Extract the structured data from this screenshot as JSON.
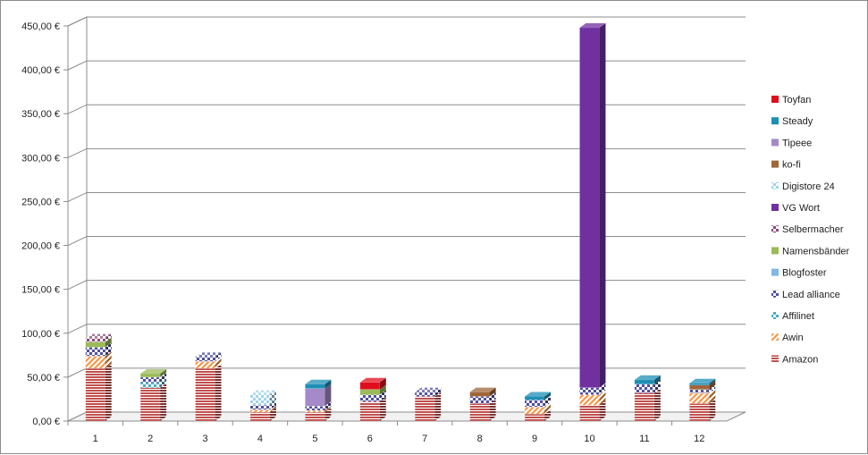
{
  "chart_data": {
    "type": "bar",
    "stacked": true,
    "three_d": true,
    "categories": [
      "1",
      "2",
      "3",
      "4",
      "5",
      "6",
      "7",
      "8",
      "9",
      "10",
      "11",
      "12"
    ],
    "ylim": [
      0,
      450
    ],
    "y_ticks": [
      "0,00 €",
      "50,00 €",
      "100,00 €",
      "150,00 €",
      "200,00 €",
      "250,00 €",
      "300,00 €",
      "350,00 €",
      "400,00 €",
      "450,00 €"
    ],
    "grid": true,
    "legend_position": "right",
    "series": [
      {
        "name": "Amazon",
        "color": "#c0504d",
        "pattern": "horizontal-lines",
        "values": [
          60,
          38,
          60,
          10,
          10,
          22,
          28,
          20,
          8,
          18,
          32,
          20
        ]
      },
      {
        "name": "Awin",
        "color": "#f79646",
        "pattern": "diagonal-lines",
        "values": [
          14,
          0,
          8,
          3,
          2,
          0,
          0,
          0,
          8,
          12,
          0,
          12
        ]
      },
      {
        "name": "Affilinet",
        "color": "#4bacc6",
        "pattern": "checker",
        "values": [
          0,
          6,
          0,
          0,
          0,
          0,
          0,
          0,
          0,
          0,
          0,
          0
        ]
      },
      {
        "name": "Lead alliance",
        "color": "#4f4f9f",
        "pattern": "checker",
        "values": [
          10,
          6,
          5,
          5,
          5,
          8,
          5,
          8,
          8,
          8,
          10,
          4
        ]
      },
      {
        "name": "Blogfoster",
        "color": "#7fb8e6",
        "pattern": "solid",
        "values": [
          0,
          0,
          0,
          0,
          0,
          0,
          0,
          0,
          0,
          0,
          0,
          0
        ]
      },
      {
        "name": "Namensbänder",
        "color": "#9bbb59",
        "pattern": "solid",
        "values": [
          6,
          4,
          0,
          0,
          0,
          6,
          0,
          0,
          0,
          0,
          0,
          0
        ]
      },
      {
        "name": "Selbermacher",
        "color": "#8a4a7a",
        "pattern": "checker",
        "values": [
          4,
          0,
          0,
          0,
          0,
          0,
          0,
          0,
          0,
          0,
          0,
          0
        ]
      },
      {
        "name": "VG Wort",
        "color": "#7030a0",
        "pattern": "solid",
        "values": [
          0,
          0,
          0,
          0,
          0,
          0,
          0,
          0,
          0,
          410,
          0,
          0
        ]
      },
      {
        "name": "Digistore 24",
        "color": "#9fd4ec",
        "pattern": "checker",
        "values": [
          0,
          0,
          0,
          12,
          0,
          0,
          0,
          0,
          0,
          0,
          0,
          0
        ]
      },
      {
        "name": "ko-fi",
        "color": "#a0663a",
        "pattern": "solid",
        "values": [
          0,
          0,
          0,
          0,
          0,
          0,
          0,
          5,
          0,
          0,
          0,
          5
        ]
      },
      {
        "name": "Tipeee",
        "color": "#a48ac8",
        "pattern": "solid",
        "values": [
          0,
          0,
          0,
          0,
          20,
          0,
          0,
          0,
          0,
          0,
          0,
          0
        ]
      },
      {
        "name": "Steady",
        "color": "#1d8fb5",
        "pattern": "solid",
        "values": [
          0,
          0,
          0,
          0,
          5,
          0,
          0,
          0,
          4,
          0,
          5,
          2
        ]
      },
      {
        "name": "Toyfan",
        "color": "#e00d1d",
        "pattern": "solid",
        "values": [
          0,
          0,
          0,
          0,
          0,
          8,
          0,
          0,
          0,
          0,
          0,
          0
        ]
      }
    ]
  }
}
